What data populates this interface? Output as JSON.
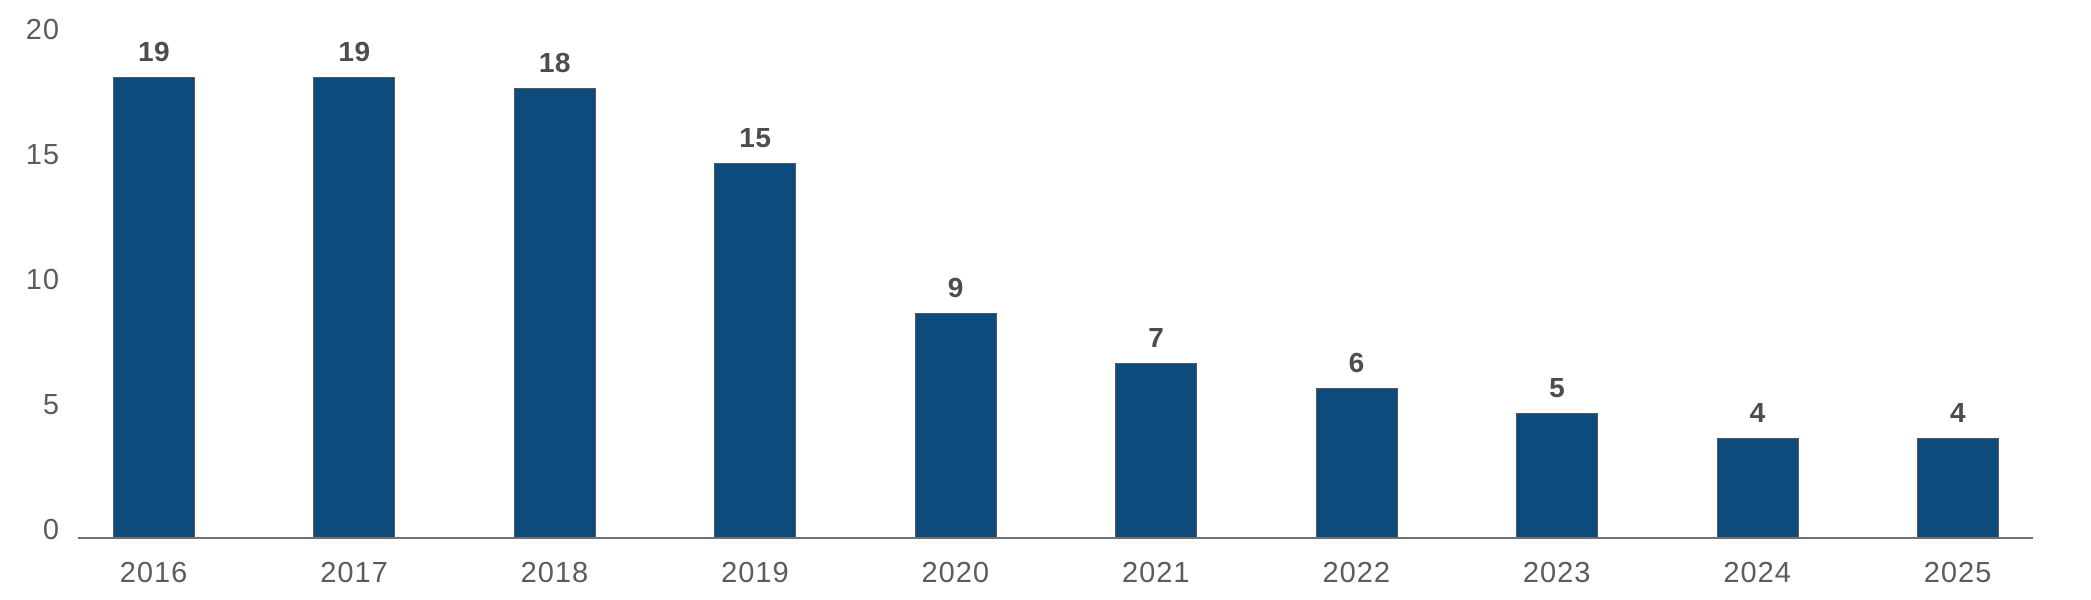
{
  "chart_data": {
    "type": "bar",
    "title": "",
    "categories": [
      "2016",
      "2017",
      "2018",
      "2019",
      "2020",
      "2021",
      "2022",
      "2023",
      "2024",
      "2025"
    ],
    "values": [
      19,
      19,
      18,
      15,
      9,
      7,
      6,
      5,
      4,
      4
    ],
    "xlabel": "",
    "ylabel": "",
    "ylim": [
      0,
      20
    ],
    "yticks": [
      0,
      5,
      10,
      15,
      20
    ],
    "grid": false,
    "legend_position": "none",
    "data_labels_shown": true,
    "colors": {
      "bar_fill": "#0D4B7C",
      "bar_border": "#54565A",
      "value_label": "#4B4D50",
      "tick_label": "#5A5C5F",
      "axis_line": "#6F7174",
      "background": "#FFFFFF"
    }
  }
}
